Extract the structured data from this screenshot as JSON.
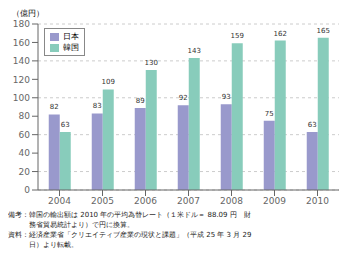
{
  "chart_data": {
    "type": "bar",
    "categories": [
      "2004",
      "2005",
      "2006",
      "2007",
      "2008",
      "2009",
      "2010"
    ],
    "series": [
      {
        "name": "日本",
        "color": "#9999cc",
        "values": [
          82,
          83,
          89,
          92,
          93,
          75,
          63
        ]
      },
      {
        "name": "韓国",
        "color": "#88ccbb",
        "values": [
          63,
          109,
          130,
          143,
          159,
          162,
          165
        ]
      }
    ],
    "ylabel": "（億円）",
    "ylim": [
      0,
      180
    ],
    "yticks": [
      0,
      20,
      40,
      60,
      80,
      100,
      120,
      140,
      160,
      180
    ],
    "grid": true,
    "legend": "upper left",
    "data_labels": true,
    "annotations": [
      "備考：韓国の輸出額は 2010 年の平均為替レート（１米ドル＝ 88.09 円　財",
      "　　　務省貿易統計より）で円に換算。",
      "資料：経済産業省「クリエイティブ産業の現状と課題」（平成 25 年 3 月 29",
      "　　　日）より転載。"
    ]
  }
}
